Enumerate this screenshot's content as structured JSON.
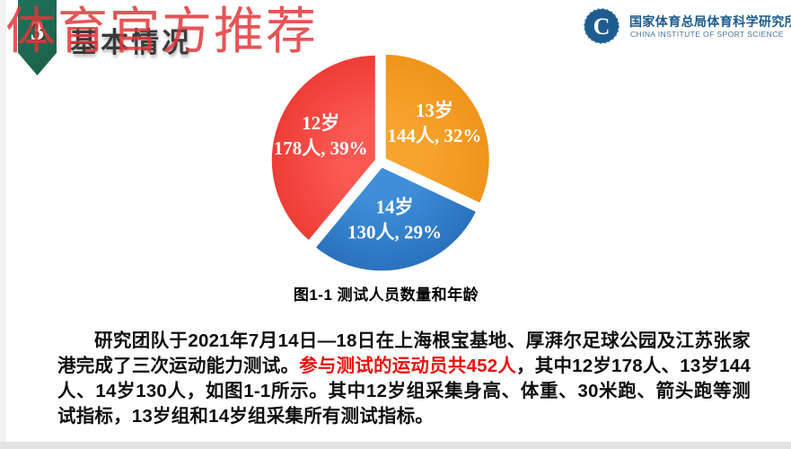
{
  "watermark": {
    "text": "体育官方推荐"
  },
  "header": {
    "badge_number": "3",
    "title": "基本情况",
    "badge_color": "#1d6b51"
  },
  "logo": {
    "name_cn": "国家体育总局体育科学研究所",
    "name_en": "CHINA INSTITUTE OF SPORT SCIENCE",
    "emblem_letter": "C",
    "color_cn": "#1d5a8c",
    "color_en": "#4a7396",
    "emblem_color": "#1e5c90"
  },
  "chart_data": {
    "type": "pie",
    "title": "图1-1 测试人员数量和年龄",
    "total": 452,
    "start_angle_deg": 0,
    "direction": "clockwise",
    "legend_position": "inside",
    "slices": [
      {
        "category": "13岁",
        "people": 144,
        "percent": 32,
        "line1": "13岁",
        "line2": "144人, 32%",
        "color_center": "#F7A42E",
        "color_edge": "#F0941A"
      },
      {
        "category": "14岁",
        "people": 130,
        "percent": 29,
        "line1": "14岁",
        "line2": "130人, 29%",
        "color_center": "#3E8ED8",
        "color_edge": "#2A71BD"
      },
      {
        "category": "12岁",
        "people": 178,
        "percent": 39,
        "line1": "12岁",
        "line2": "178人, 39%",
        "color_center": "#FB5952",
        "color_edge": "#EE3C36"
      }
    ]
  },
  "paragraph": {
    "text_before_highlight": "研究团队于2021年7月14日—18日在上海根宝基地、厚湃尔足球公园及江苏张家港完成了三次运动能力测试。",
    "highlight": "参与测试的运动员共452人",
    "highlight_color": "#e8120d",
    "text_after_highlight": "，其中12岁178人、13岁144人、14岁130人，如图1-1所示。其中12岁组采集身高、体重、30米跑、箭头跑等测试指标，13岁组和14岁组采集所有测试指标。"
  }
}
